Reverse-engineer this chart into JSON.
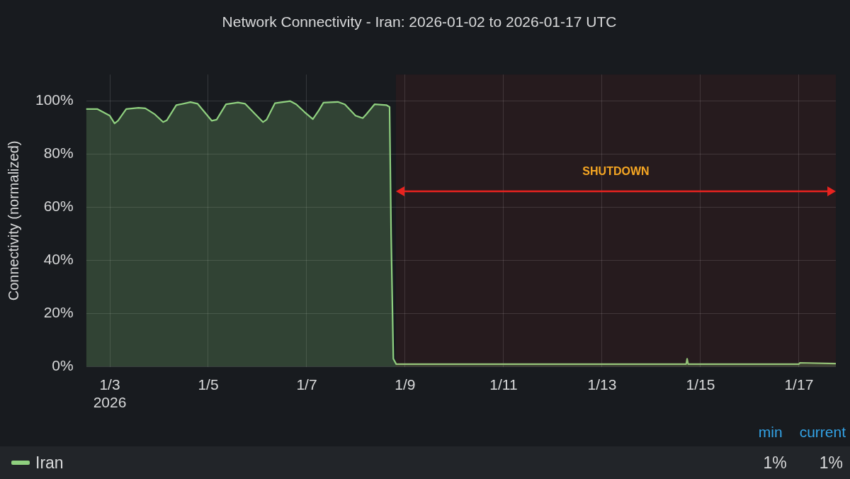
{
  "chart_data": {
    "type": "area",
    "title": "Network Connectivity - Iran: 2026-01-02 to 2026-01-17 UTC",
    "ylabel": "Connectivity (normalized)",
    "xlim": [
      "2026-01-02T12:30",
      "2026-01-17T18:00"
    ],
    "xticks": [
      {
        "value": "2026-01-03",
        "label": "1/3\n2026"
      },
      {
        "value": "2026-01-05",
        "label": "1/5"
      },
      {
        "value": "2026-01-07",
        "label": "1/7"
      },
      {
        "value": "2026-01-09",
        "label": "1/9"
      },
      {
        "value": "2026-01-11",
        "label": "1/11"
      },
      {
        "value": "2026-01-13",
        "label": "1/13"
      },
      {
        "value": "2026-01-15",
        "label": "1/15"
      },
      {
        "value": "2026-01-17",
        "label": "1/17"
      }
    ],
    "ylim": [
      0,
      110
    ],
    "yticks": [
      {
        "value": 0,
        "label": "0%"
      },
      {
        "value": 20,
        "label": "20%"
      },
      {
        "value": 40,
        "label": "40%"
      },
      {
        "value": 60,
        "label": "60%"
      },
      {
        "value": 80,
        "label": "80%"
      },
      {
        "value": 100,
        "label": "100%"
      }
    ],
    "grid": true,
    "legend": "bottom",
    "marker": "none",
    "line_style": "solid",
    "series": [
      {
        "name": "Iran",
        "color": "#8fd07f",
        "x": [
          "2026-01-02T12:30",
          "2026-01-02T18:00",
          "2026-01-03T00:00",
          "2026-01-03T02:20",
          "2026-01-03T04:00",
          "2026-01-03T08:00",
          "2026-01-03T14:00",
          "2026-01-03T17:20",
          "2026-01-03T22:00",
          "2026-01-04T02:00",
          "2026-01-04T03:50",
          "2026-01-04T08:25",
          "2026-01-04T15:20",
          "2026-01-04T18:50",
          "2026-01-05T01:45",
          "2026-01-05T04:05",
          "2026-01-05T08:40",
          "2026-01-05T14:30",
          "2026-01-05T18:00",
          "2026-01-06T02:40",
          "2026-01-06T04:25",
          "2026-01-06T08:30",
          "2026-01-06T16:00",
          "2026-01-06T18:55",
          "2026-01-06T22:55",
          "2026-01-07T03:00",
          "2026-01-07T05:50",
          "2026-01-07T08:10",
          "2026-01-07T15:10",
          "2026-01-07T18:35",
          "2026-01-07T23:50",
          "2026-01-08T03:20",
          "2026-01-08T05:00",
          "2026-01-08T09:05",
          "2026-01-08T14:50",
          "2026-01-08T16:25",
          "2026-01-08T17:10",
          "2026-01-08T18:15",
          "2026-01-08T19:40",
          "2026-01-14T17:00",
          "2026-01-14T17:30",
          "2026-01-14T18:00",
          "2026-01-17T00:00",
          "2026-01-17T00:30",
          "2026-01-17T18:00"
        ],
        "values": [
          97,
          97,
          94.5,
          91.6,
          92.6,
          97,
          97.5,
          97.3,
          95,
          92.1,
          92.8,
          98.5,
          99.6,
          99,
          92.6,
          93,
          98.8,
          99.5,
          99,
          92.1,
          93,
          99.2,
          100,
          98.8,
          95.9,
          93.2,
          96.4,
          99.4,
          99.7,
          98.8,
          94.5,
          93.6,
          95,
          98.8,
          98.5,
          97.8,
          50,
          3,
          1,
          1,
          3,
          1,
          1,
          1.5,
          1.2
        ]
      }
    ],
    "bands": [
      {
        "axis": "x",
        "from": "2026-01-08T19:30",
        "to": "2026-01-17T18:00",
        "label": "SHUTDOWN",
        "color": "#e8231f"
      }
    ],
    "annotations": [
      "min",
      "current",
      "1%",
      "1%"
    ]
  }
}
